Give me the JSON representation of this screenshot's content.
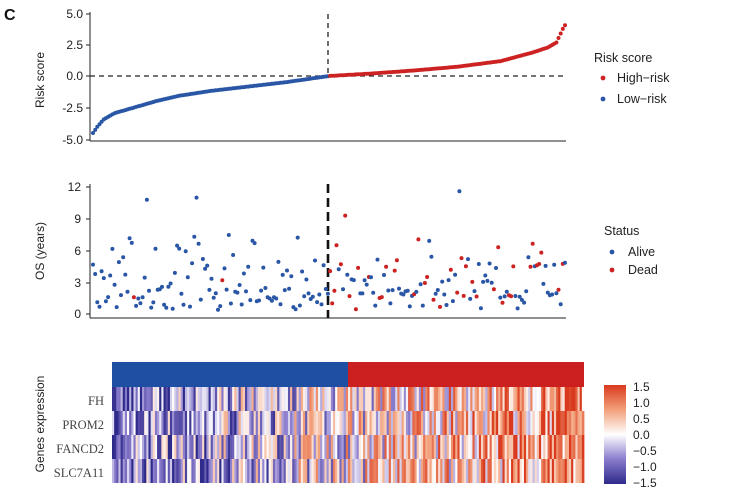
{
  "figure": {
    "panel_letter": "C"
  },
  "chart_data": [
    {
      "type": "scatter",
      "ylabel": "Risk score",
      "ylim": [
        -5.0,
        5.0
      ],
      "yticks": [
        "5.0",
        "2.5",
        "0.0",
        "-2.5",
        "-5.0"
      ],
      "cutoff_y": 0.0,
      "legend": {
        "title": "Risk score",
        "items": [
          "High−risk",
          "Low−risk"
        ],
        "placement": "right"
      },
      "colors": {
        "high": "#cc2222",
        "low": "#2a56a6"
      },
      "n_low": 110,
      "n_high": 110,
      "curve": [
        [
          0,
          -4.6
        ],
        [
          2,
          -4.1
        ],
        [
          5,
          -3.5
        ],
        [
          10,
          -3.0
        ],
        [
          20,
          -2.5
        ],
        [
          30,
          -2.0
        ],
        [
          40,
          -1.6
        ],
        [
          55,
          -1.2
        ],
        [
          70,
          -0.9
        ],
        [
          90,
          -0.5
        ],
        [
          110,
          0.0
        ],
        [
          130,
          0.2
        ],
        [
          150,
          0.45
        ],
        [
          170,
          0.75
        ],
        [
          190,
          1.2
        ],
        [
          205,
          1.9
        ],
        [
          212,
          2.3
        ],
        [
          216,
          2.7
        ],
        [
          219,
          3.8
        ],
        [
          220,
          4.1
        ]
      ]
    },
    {
      "type": "scatter",
      "ylabel": "OS (years)",
      "ylim": [
        0,
        12
      ],
      "yticks": [
        "12",
        "9",
        "6",
        "3",
        "0"
      ],
      "legend": {
        "title": "Status",
        "items": [
          "Alive",
          "Dead"
        ],
        "placement": "right"
      },
      "colors": {
        "alive": "#2a56a6",
        "dead": "#cc2222"
      },
      "highlighted_points": [
        {
          "idx": 25,
          "os": 10.8,
          "status": "alive"
        },
        {
          "idx": 48,
          "os": 11.0,
          "status": "alive"
        },
        {
          "idx": 170,
          "os": 11.6,
          "status": "alive"
        },
        {
          "idx": 113,
          "os": 6.5,
          "status": "dead"
        },
        {
          "idx": 117,
          "os": 9.3,
          "status": "dead"
        },
        {
          "idx": 140,
          "os": 4.1,
          "status": "dead"
        },
        {
          "idx": 155,
          "os": 3.5,
          "status": "dead"
        },
        {
          "idx": 195,
          "os": 4.5,
          "status": "dead"
        },
        {
          "idx": 208,
          "os": 5.8,
          "status": "dead"
        }
      ]
    },
    {
      "type": "heatmap",
      "ylabel": "Genes expression",
      "genes": [
        "FH",
        "PROM2",
        "FANCD2",
        "SLC7A11"
      ],
      "group_colors": {
        "low": "#1f4fa3",
        "high": "#cc1f1f"
      },
      "colorbar": {
        "ticks": [
          "1.5",
          "1.0",
          "0.5",
          "0.0",
          "−0.5",
          "−1.0",
          "−1.5"
        ],
        "range": [
          -1.5,
          1.5
        ],
        "stops": [
          "#2e2a8a",
          "#8a7ccc",
          "#ffffff",
          "#f2a07a",
          "#d93a1e"
        ]
      }
    }
  ]
}
